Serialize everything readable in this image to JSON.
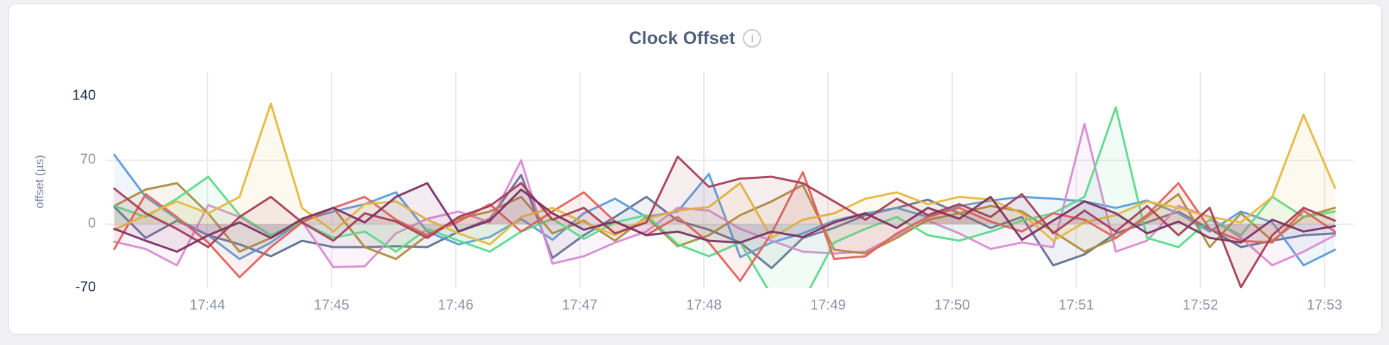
{
  "page": {
    "background": "#F1F1F4",
    "card_background": "#FFFFFF",
    "card_border": "#E3E3E7"
  },
  "header": {
    "title": "Clock Offset",
    "info_icon_glyph": "i"
  },
  "style": {
    "grid_color": "#E9E9EC",
    "tick_label_color": "#8C95AB",
    "extreme_tick_label_color": "#1F2C4E",
    "axis_title_color": "#7A84A0",
    "title_color": "#525E7E",
    "fill_opacity": 0.09,
    "line_width": 3
  },
  "chart_data": {
    "type": "line",
    "title": "Clock Offset",
    "xlabel": "",
    "ylabel": "offset (µs)",
    "grid": "on",
    "legend": "none",
    "x_tick_labels": [
      "17:44",
      "17:45",
      "17:46",
      "17:47",
      "17:48",
      "17:49",
      "17:50",
      "17:51",
      "17:52",
      "17:53"
    ],
    "x_tick_seconds": [
      0,
      60,
      120,
      180,
      240,
      300,
      360,
      420,
      480,
      540
    ],
    "x_range_seconds": [
      -45,
      554
    ],
    "sample_start_seconds": -45,
    "sample_interval_seconds": 15.128,
    "ylim": [
      -70,
      167
    ],
    "y_ticks": [
      {
        "value": 140,
        "label": "140",
        "emphasis": true
      },
      {
        "value": 70,
        "label": "70",
        "emphasis": false
      },
      {
        "value": 0,
        "label": "0",
        "emphasis": false
      },
      {
        "value": -70,
        "label": "-70",
        "emphasis": true
      }
    ],
    "y_gridline_values": [
      70,
      0
    ],
    "series": [
      {
        "name": "slate",
        "color": "#60708F",
        "values": [
          19,
          -15,
          4,
          -12,
          -22,
          -35,
          -18,
          -25,
          -25,
          -24,
          -25,
          -8,
          6,
          54,
          -37,
          -12,
          8,
          30,
          4,
          -6,
          -20,
          -48,
          -15,
          -4,
          10,
          18,
          27,
          12,
          -4,
          8,
          -45,
          -33,
          -10,
          2,
          14,
          -5,
          -25,
          -18,
          -12,
          -10
        ]
      },
      {
        "name": "blue",
        "color": "#5B9CD6",
        "values": [
          76,
          30,
          6,
          -12,
          -38,
          -20,
          4,
          14,
          22,
          35,
          -8,
          -22,
          -14,
          6,
          -17,
          12,
          28,
          8,
          14,
          55,
          -36,
          -20,
          -10,
          4,
          12,
          18,
          8,
          20,
          26,
          30,
          28,
          25,
          18,
          26,
          12,
          -8,
          14,
          2,
          -45,
          -28
        ]
      },
      {
        "name": "pink",
        "color": "#D88CD3",
        "values": [
          -19,
          -27,
          -45,
          21,
          8,
          -12,
          3,
          -47,
          -46,
          -10,
          6,
          14,
          2,
          70,
          -43,
          -35,
          -20,
          -8,
          18,
          15,
          -5,
          -18,
          -30,
          -32,
          -30,
          -12,
          4,
          -10,
          -27,
          -20,
          -25,
          110,
          -30,
          -18,
          20,
          8,
          -15,
          -45,
          -30,
          -12
        ]
      },
      {
        "name": "olive",
        "color": "#AC8C3F",
        "values": [
          20,
          38,
          45,
          12,
          -30,
          -15,
          3,
          18,
          -25,
          -38,
          -12,
          6,
          14,
          30,
          -10,
          4,
          -18,
          8,
          -24,
          -12,
          10,
          25,
          43,
          -28,
          -32,
          -15,
          5,
          12,
          20,
          14,
          -8,
          -30,
          -15,
          8,
          33,
          -25,
          12,
          -18,
          8,
          18
        ]
      },
      {
        "name": "green",
        "color": "#5ED98C",
        "values": [
          20,
          8,
          28,
          52,
          10,
          -12,
          2,
          -15,
          -8,
          -30,
          -5,
          -18,
          -30,
          -8,
          6,
          -16,
          2,
          10,
          -22,
          -35,
          -20,
          -78,
          -85,
          -20,
          -5,
          8,
          -12,
          -18,
          -8,
          4,
          12,
          30,
          128,
          -15,
          -25,
          5,
          -12,
          30,
          8,
          14
        ]
      },
      {
        "name": "red",
        "color": "#E2635C",
        "values": [
          -27,
          33,
          8,
          -20,
          -58,
          -25,
          2,
          18,
          30,
          5,
          -12,
          3,
          22,
          -8,
          14,
          35,
          3,
          -12,
          8,
          -20,
          -62,
          -10,
          57,
          -38,
          -35,
          -10,
          8,
          18,
          3,
          -8,
          12,
          5,
          -15,
          10,
          45,
          -5,
          -18,
          -20,
          15,
          -8
        ]
      },
      {
        "name": "gold",
        "color": "#E6B93F",
        "values": [
          -6,
          10,
          25,
          12,
          30,
          132,
          18,
          -8,
          22,
          25,
          5,
          -10,
          -22,
          8,
          18,
          2,
          -12,
          6,
          15,
          19,
          45,
          -15,
          5,
          12,
          28,
          35,
          22,
          30,
          27,
          12,
          -18,
          2,
          10,
          25,
          18,
          8,
          2,
          30,
          120,
          40
        ]
      },
      {
        "name": "maroon",
        "color": "#A63F58",
        "values": [
          39,
          12,
          -5,
          -25,
          8,
          30,
          2,
          -18,
          12,
          3,
          -15,
          8,
          20,
          45,
          5,
          18,
          -10,
          2,
          74,
          41,
          50,
          52,
          45,
          25,
          5,
          28,
          10,
          22,
          8,
          33,
          -10,
          15,
          -8,
          20,
          -12,
          18,
          -69,
          -12,
          18,
          4
        ]
      },
      {
        "name": "plum",
        "color": "#7D3163",
        "values": [
          -5,
          -18,
          -30,
          -12,
          2,
          -15,
          6,
          18,
          2,
          30,
          45,
          -8,
          4,
          38,
          12,
          -6,
          3,
          -12,
          -8,
          -18,
          -20,
          -8,
          -14,
          2,
          12,
          -4,
          18,
          6,
          30,
          -17,
          4,
          25,
          12,
          -10,
          3,
          -15,
          -20,
          5,
          -8,
          -2
        ]
      }
    ]
  }
}
